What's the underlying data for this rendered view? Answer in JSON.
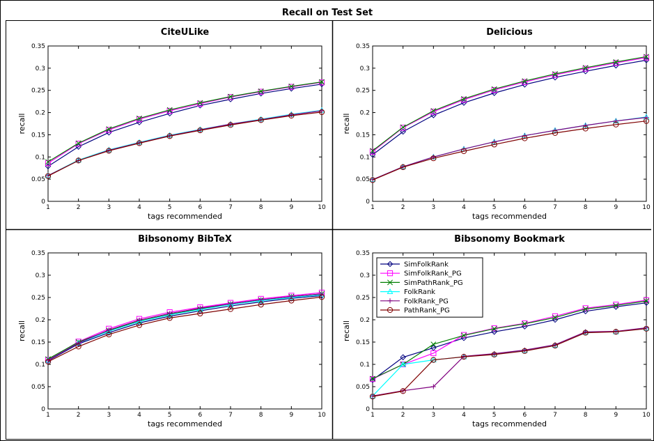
{
  "figure_title": "Recall on Test Set",
  "chart_data": [
    {
      "type": "line",
      "title": "CiteULike",
      "xlabel": "tags recommended",
      "ylabel": "recall",
      "x": [
        1,
        2,
        3,
        4,
        5,
        6,
        7,
        8,
        9,
        10
      ],
      "xlim": [
        1,
        10
      ],
      "ylim": [
        0,
        0.35
      ],
      "yticks": [
        0,
        0.05,
        0.1,
        0.15,
        0.2,
        0.25,
        0.3,
        0.35
      ],
      "grid": false,
      "series": [
        {
          "name": "SimFolkRank",
          "values": [
            0.079,
            0.123,
            0.155,
            0.178,
            0.198,
            0.216,
            0.23,
            0.243,
            0.254,
            0.264
          ]
        },
        {
          "name": "SimFolkRank_PG",
          "values": [
            0.086,
            0.13,
            0.161,
            0.185,
            0.204,
            0.22,
            0.235,
            0.247,
            0.258,
            0.268
          ]
        },
        {
          "name": "SimPathRank_PG",
          "values": [
            0.089,
            0.131,
            0.163,
            0.187,
            0.206,
            0.222,
            0.236,
            0.248,
            0.259,
            0.269
          ]
        },
        {
          "name": "FolkRank",
          "values": [
            0.058,
            0.093,
            0.116,
            0.133,
            0.149,
            0.162,
            0.174,
            0.185,
            0.196,
            0.205
          ]
        },
        {
          "name": "FolkRank_PG",
          "values": [
            0.058,
            0.092,
            0.115,
            0.132,
            0.148,
            0.161,
            0.174,
            0.184,
            0.195,
            0.204
          ]
        },
        {
          "name": "PathRank_PG",
          "values": [
            0.057,
            0.092,
            0.114,
            0.131,
            0.147,
            0.16,
            0.172,
            0.183,
            0.193,
            0.201
          ]
        }
      ]
    },
    {
      "type": "line",
      "title": "Delicious",
      "xlabel": "tags recommended",
      "ylabel": "recall",
      "x": [
        1,
        2,
        3,
        4,
        5,
        6,
        7,
        8,
        9,
        10
      ],
      "xlim": [
        1,
        10
      ],
      "ylim": [
        0,
        0.35
      ],
      "yticks": [
        0,
        0.05,
        0.1,
        0.15,
        0.2,
        0.25,
        0.3,
        0.35
      ],
      "grid": false,
      "series": [
        {
          "name": "SimFolkRank",
          "values": [
            0.105,
            0.157,
            0.194,
            0.222,
            0.244,
            0.263,
            0.279,
            0.293,
            0.306,
            0.318
          ]
        },
        {
          "name": "SimFolkRank_PG",
          "values": [
            0.112,
            0.166,
            0.202,
            0.229,
            0.251,
            0.269,
            0.285,
            0.299,
            0.312,
            0.324
          ]
        },
        {
          "name": "SimPathRank_PG",
          "values": [
            0.114,
            0.167,
            0.204,
            0.231,
            0.253,
            0.271,
            0.287,
            0.301,
            0.314,
            0.326
          ]
        },
        {
          "name": "FolkRank",
          "values": [
            0.049,
            0.078,
            0.1,
            0.118,
            0.134,
            0.148,
            0.16,
            0.171,
            0.181,
            0.19
          ]
        },
        {
          "name": "FolkRank_PG",
          "values": [
            0.049,
            0.078,
            0.1,
            0.118,
            0.134,
            0.148,
            0.16,
            0.171,
            0.181,
            0.189
          ]
        },
        {
          "name": "PathRank_PG",
          "values": [
            0.048,
            0.077,
            0.097,
            0.113,
            0.128,
            0.142,
            0.154,
            0.164,
            0.173,
            0.181
          ]
        }
      ]
    },
    {
      "type": "line",
      "title": "Bibsonomy BibTeX",
      "xlabel": "tags recommended",
      "ylabel": "recall",
      "x": [
        1,
        2,
        3,
        4,
        5,
        6,
        7,
        8,
        9,
        10
      ],
      "xlim": [
        1,
        10
      ],
      "ylim": [
        0,
        0.35
      ],
      "yticks": [
        0,
        0.05,
        0.1,
        0.15,
        0.2,
        0.25,
        0.3,
        0.35
      ],
      "grid": false,
      "series": [
        {
          "name": "SimFolkRank",
          "values": [
            0.108,
            0.146,
            0.171,
            0.193,
            0.208,
            0.22,
            0.231,
            0.24,
            0.248,
            0.254
          ]
        },
        {
          "name": "SimFolkRank_PG",
          "values": [
            0.11,
            0.151,
            0.18,
            0.202,
            0.217,
            0.228,
            0.238,
            0.247,
            0.254,
            0.261
          ]
        },
        {
          "name": "SimPathRank_PG",
          "values": [
            0.112,
            0.15,
            0.176,
            0.197,
            0.212,
            0.224,
            0.235,
            0.244,
            0.252,
            0.258
          ]
        },
        {
          "name": "FolkRank",
          "values": [
            0.109,
            0.148,
            0.174,
            0.196,
            0.211,
            0.223,
            0.234,
            0.243,
            0.25,
            0.256
          ]
        },
        {
          "name": "FolkRank_PG",
          "values": [
            0.109,
            0.148,
            0.177,
            0.199,
            0.214,
            0.226,
            0.236,
            0.245,
            0.252,
            0.258
          ]
        },
        {
          "name": "PathRank_PG",
          "values": [
            0.106,
            0.14,
            0.167,
            0.188,
            0.204,
            0.214,
            0.224,
            0.234,
            0.243,
            0.251
          ]
        }
      ]
    },
    {
      "type": "line",
      "title": "Bibsonomy Bookmark",
      "xlabel": "tags recommended",
      "ylabel": "recall",
      "x": [
        1,
        2,
        3,
        4,
        5,
        6,
        7,
        8,
        9,
        10
      ],
      "xlim": [
        1,
        10
      ],
      "ylim": [
        0,
        0.35
      ],
      "yticks": [
        0,
        0.05,
        0.1,
        0.15,
        0.2,
        0.25,
        0.3,
        0.35
      ],
      "grid": false,
      "legend": "top-left",
      "series": [
        {
          "name": "SimFolkRank",
          "color": "#00007f",
          "marker": "diamond",
          "values": [
            0.065,
            0.116,
            0.137,
            0.159,
            0.173,
            0.185,
            0.2,
            0.219,
            0.229,
            0.238
          ]
        },
        {
          "name": "SimFolkRank_PG",
          "color": "#ff00ff",
          "marker": "square",
          "values": [
            0.067,
            0.1,
            0.125,
            0.166,
            0.181,
            0.192,
            0.208,
            0.226,
            0.234,
            0.244
          ]
        },
        {
          "name": "SimPathRank_PG",
          "color": "#007f00",
          "marker": "x",
          "values": [
            0.068,
            0.1,
            0.145,
            0.165,
            0.18,
            0.191,
            0.205,
            0.224,
            0.232,
            0.242
          ]
        },
        {
          "name": "FolkRank",
          "color": "#00ffff",
          "marker": "triangle",
          "values": [
            0.029,
            0.1,
            0.11,
            0.117,
            0.123,
            0.131,
            0.143,
            0.172,
            0.173,
            0.181
          ]
        },
        {
          "name": "FolkRank_PG",
          "color": "#7f007f",
          "marker": "plus",
          "values": [
            0.029,
            0.041,
            0.05,
            0.118,
            0.124,
            0.132,
            0.144,
            0.173,
            0.174,
            0.182
          ]
        },
        {
          "name": "PathRank_PG",
          "color": "#7f0000",
          "marker": "circle",
          "values": [
            0.028,
            0.04,
            0.11,
            0.117,
            0.122,
            0.13,
            0.142,
            0.171,
            0.173,
            0.18
          ]
        }
      ]
    }
  ],
  "legend": [
    {
      "name": "SimFolkRank",
      "color": "#00007f",
      "marker": "diamond"
    },
    {
      "name": "SimFolkRank_PG",
      "color": "#ff00ff",
      "marker": "square"
    },
    {
      "name": "SimPathRank_PG",
      "color": "#007f00",
      "marker": "x"
    },
    {
      "name": "FolkRank",
      "color": "#00ffff",
      "marker": "triangle"
    },
    {
      "name": "FolkRank_PG",
      "color": "#7f007f",
      "marker": "plus"
    },
    {
      "name": "PathRank_PG",
      "color": "#7f0000",
      "marker": "circle"
    }
  ]
}
